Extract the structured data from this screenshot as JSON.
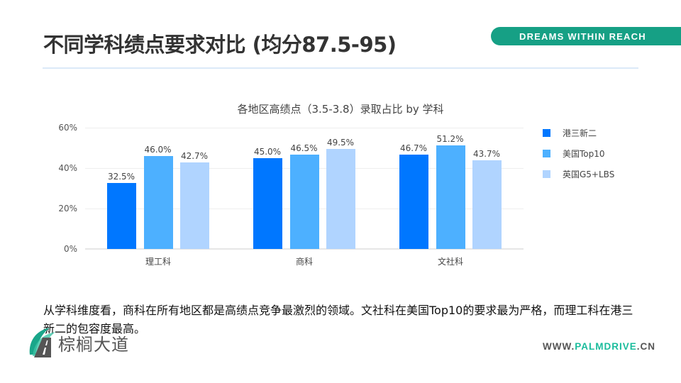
{
  "header": {
    "title": "不同学科绩点要求对比 (均分87.5-95)",
    "brand_tagline": "DREAMS WITHIN REACH"
  },
  "chart_data": {
    "type": "bar",
    "title": "各地区高绩点（3.5-3.8）录取占比 by 学科",
    "categories": [
      "理工科",
      "商科",
      "文社科"
    ],
    "series": [
      {
        "name": "港三新二",
        "color": "#0077ff",
        "values": [
          32.5,
          45.0,
          46.7
        ]
      },
      {
        "name": "美国Top10",
        "color": "#4db0ff",
        "values": [
          46.0,
          46.5,
          51.2
        ]
      },
      {
        "name": "英国G5+LBS",
        "color": "#b0d4ff",
        "values": [
          42.7,
          49.5,
          43.7
        ]
      }
    ],
    "value_labels": [
      [
        "32.5%",
        "45.0%",
        "46.7%"
      ],
      [
        "46.0%",
        "46.5%",
        "51.2%"
      ],
      [
        "42.7%",
        "49.5%",
        "43.7%"
      ]
    ],
    "xlabel": "",
    "ylabel": "",
    "yticks": [
      "0%",
      "20%",
      "40%",
      "60%"
    ],
    "ylim": [
      0,
      60
    ],
    "grid": true,
    "legend_position": "right"
  },
  "summary": {
    "text": "从学科维度看，商科在所有地区都是高绩点竞争最激烈的领域。文社科在美国Top10的要求最为严格，而理工科在港三新二的包容度最高。"
  },
  "footer": {
    "logo_text": "棕榈大道",
    "website_prefix": "WWW.",
    "website_brand": "PALMDRIVE",
    "website_suffix": ".CN"
  }
}
